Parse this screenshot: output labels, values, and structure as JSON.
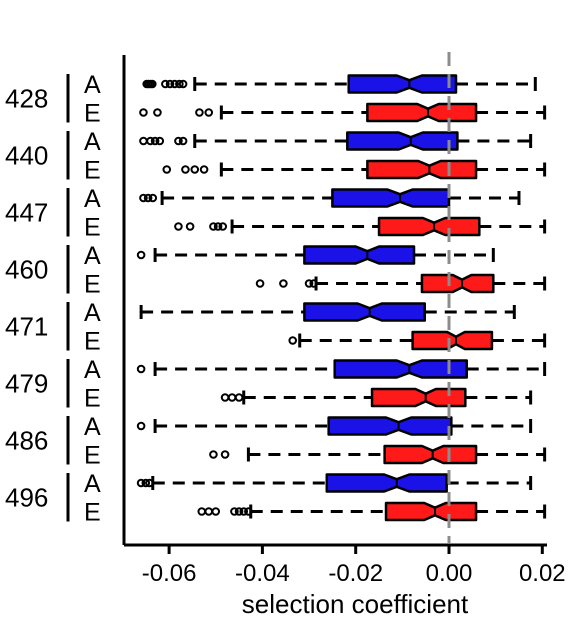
{
  "chart_data": {
    "type": "boxplot",
    "orientation": "horizontal",
    "notched": true,
    "xlabel": "selection coefficient",
    "xlim": [
      -0.07,
      0.021
    ],
    "xticks": [
      -0.06,
      -0.04,
      -0.02,
      0.0,
      0.02
    ],
    "xtick_labels": [
      "-0.06",
      "-0.04",
      "-0.02",
      "0.00",
      "0.02"
    ],
    "reference_line": {
      "x": 0.0,
      "style": "dashed",
      "color": "#8c8c8c"
    },
    "colors": {
      "A": "#1a12e6",
      "E": "#ff1a1a"
    },
    "groups": [
      {
        "label": "428",
        "boxes": [
          {
            "label": "A",
            "whislo": -0.0545,
            "q1": -0.0215,
            "med": -0.0085,
            "q3": 0.0015,
            "whishi": 0.0185,
            "notch": [
              -0.0112,
              -0.0058
            ],
            "fliers": [
              -0.0648,
              -0.0644,
              -0.064,
              -0.0636,
              -0.0608,
              -0.0598,
              -0.0588,
              -0.0578,
              -0.057
            ]
          },
          {
            "label": "E",
            "whislo": -0.0488,
            "q1": -0.0175,
            "med": -0.0045,
            "q3": 0.0058,
            "whishi": 0.0205,
            "notch": [
              -0.0068,
              -0.0022
            ],
            "fliers": [
              -0.0655,
              -0.0625,
              -0.0535,
              -0.0515
            ]
          }
        ]
      },
      {
        "label": "440",
        "boxes": [
          {
            "label": "A",
            "whislo": -0.0545,
            "q1": -0.0218,
            "med": -0.0082,
            "q3": 0.0018,
            "whishi": 0.0175,
            "notch": [
              -0.0108,
              -0.0056
            ],
            "fliers": [
              -0.0655,
              -0.064,
              -0.063,
              -0.062,
              -0.058,
              -0.057
            ]
          },
          {
            "label": "E",
            "whislo": -0.0488,
            "q1": -0.0175,
            "med": -0.0042,
            "q3": 0.0058,
            "whishi": 0.0205,
            "notch": [
              -0.0066,
              -0.0018
            ],
            "fliers": [
              -0.0605,
              -0.0565,
              -0.0545,
              -0.0525
            ]
          }
        ]
      },
      {
        "label": "447",
        "boxes": [
          {
            "label": "A",
            "whislo": -0.0615,
            "q1": -0.025,
            "med": -0.0105,
            "q3": 0.0,
            "whishi": 0.015,
            "notch": [
              -0.0132,
              -0.0078
            ],
            "fliers": [
              -0.0655,
              -0.0645,
              -0.0635
            ]
          },
          {
            "label": "E",
            "whislo": -0.0465,
            "q1": -0.015,
            "med": -0.0032,
            "q3": 0.0065,
            "whishi": 0.0205,
            "notch": [
              -0.0056,
              -0.0008
            ],
            "fliers": [
              -0.058,
              -0.0555,
              -0.0505,
              -0.0495,
              -0.0485
            ]
          }
        ]
      },
      {
        "label": "460",
        "boxes": [
          {
            "label": "A",
            "whislo": -0.063,
            "q1": -0.031,
            "med": -0.0175,
            "q3": -0.0075,
            "whishi": 0.0095,
            "notch": [
              -0.02,
              -0.015
            ],
            "fliers": [
              -0.066
            ]
          },
          {
            "label": "E",
            "whislo": -0.0285,
            "q1": -0.0058,
            "med": 0.0028,
            "q3": 0.0095,
            "whishi": 0.0205,
            "notch": [
              0.0008,
              0.0048
            ],
            "fliers": [
              -0.0405,
              -0.0355,
              -0.03,
              -0.029
            ]
          }
        ]
      },
      {
        "label": "471",
        "boxes": [
          {
            "label": "A",
            "whislo": -0.066,
            "q1": -0.031,
            "med": -0.017,
            "q3": -0.0052,
            "whishi": 0.014,
            "notch": [
              -0.0196,
              -0.0144
            ],
            "fliers": []
          },
          {
            "label": "E",
            "whislo": -0.032,
            "q1": -0.0078,
            "med": 0.0015,
            "q3": 0.0092,
            "whishi": 0.0205,
            "notch": [
              -0.0004,
              0.0034
            ],
            "fliers": [
              -0.0335
            ]
          }
        ]
      },
      {
        "label": "479",
        "boxes": [
          {
            "label": "A",
            "whislo": -0.063,
            "q1": -0.0245,
            "med": -0.0085,
            "q3": 0.0038,
            "whishi": 0.0205,
            "notch": [
              -0.0112,
              -0.0058
            ],
            "fliers": [
              -0.066
            ]
          },
          {
            "label": "E",
            "whislo": -0.044,
            "q1": -0.0165,
            "med": -0.005,
            "q3": 0.0035,
            "whishi": 0.0175,
            "notch": [
              -0.0072,
              -0.0028
            ],
            "fliers": [
              -0.048,
              -0.0465,
              -0.045
            ]
          }
        ]
      },
      {
        "label": "486",
        "boxes": [
          {
            "label": "A",
            "whislo": -0.063,
            "q1": -0.0258,
            "med": -0.0108,
            "q3": 0.0005,
            "whishi": 0.0175,
            "notch": [
              -0.0135,
              -0.0081
            ],
            "fliers": [
              -0.066
            ]
          },
          {
            "label": "E",
            "whislo": -0.043,
            "q1": -0.0138,
            "med": -0.0035,
            "q3": 0.0058,
            "whishi": 0.0205,
            "notch": [
              -0.0058,
              -0.0012
            ],
            "fliers": [
              -0.0505,
              -0.048
            ]
          }
        ]
      },
      {
        "label": "496",
        "boxes": [
          {
            "label": "A",
            "whislo": -0.0635,
            "q1": -0.0262,
            "med": -0.0112,
            "q3": -0.0005,
            "whishi": 0.0175,
            "notch": [
              -0.0139,
              -0.0085
            ],
            "fliers": [
              -0.066,
              -0.065,
              -0.0642
            ]
          },
          {
            "label": "E",
            "whislo": -0.0425,
            "q1": -0.0135,
            "med": -0.003,
            "q3": 0.0058,
            "whishi": 0.0205,
            "notch": [
              -0.0053,
              -0.0007
            ],
            "fliers": [
              -0.053,
              -0.0515,
              -0.05,
              -0.046,
              -0.045,
              -0.044,
              -0.043
            ]
          }
        ]
      }
    ]
  }
}
